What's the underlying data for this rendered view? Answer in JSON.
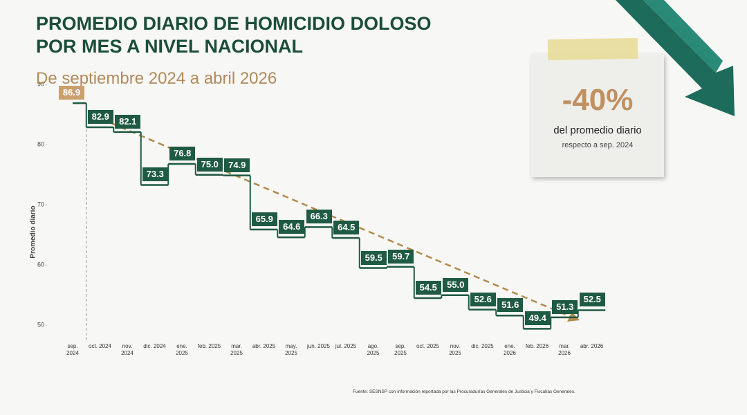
{
  "chart_data": {
    "type": "step",
    "title": "PROMEDIO DIARIO DE HOMICIDIO DOLOSO POR MES A NIVEL NACIONAL",
    "subtitle": "De septiembre 2024 a abril 2026",
    "y_label": "Promedio diario",
    "categories": [
      "sep. 2024",
      "oct. 2024",
      "nov. 2024",
      "dic. 2024",
      "ene. 2025",
      "feb. 2025",
      "mar. 2025",
      "abr. 2025",
      "may. 2025",
      "jun. 2025",
      "jul. 2025",
      "ago. 2025",
      "sep. 2025",
      "oct. 2025",
      "nov. 2025",
      "dic. 2025",
      "ene. 2026",
      "feb. 2026",
      "mar. 2026",
      "abr. 2026"
    ],
    "values": [
      86.9,
      82.9,
      82.1,
      73.3,
      76.8,
      75.0,
      74.9,
      65.9,
      64.6,
      66.3,
      64.5,
      59.5,
      59.7,
      54.5,
      55.0,
      52.6,
      51.6,
      49.4,
      51.3,
      52.5
    ],
    "value_labels": [
      "86.9",
      "82.9",
      "82.1",
      "73.3",
      "76.8",
      "75.0",
      "74.9",
      "65.9",
      "64.6",
      "66.3",
      "64.5",
      "59.5",
      "59.7",
      "54.5",
      "55.0",
      "52.6",
      "51.6",
      "49.4",
      "51.3",
      "52.5"
    ],
    "color": "#1f5a43",
    "highlight_color": "#c9a06c",
    "ylim": [
      48,
      91
    ],
    "yticks": [
      50,
      60,
      70,
      80,
      90
    ],
    "annotation": {
      "value": "-40%",
      "line1": "del promedio diario",
      "line2": "respecto a sep. 2024"
    },
    "source": "Fuente: SESNSP con información reportada por las Procuradurías Generales de Justicia y Fiscalías Generales."
  }
}
